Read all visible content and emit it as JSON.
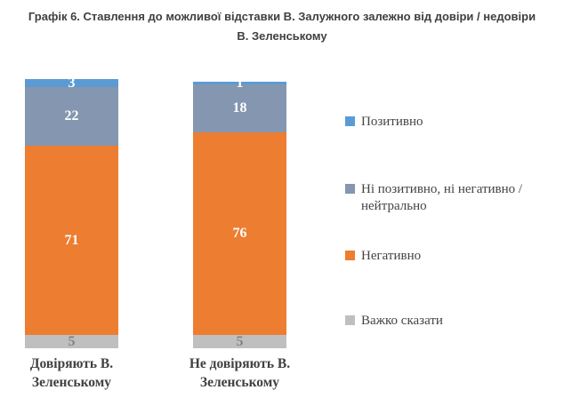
{
  "title": {
    "text": "Графік 6. Ставлення до можливої відставки В. Залужного залежно від довіри / недовіри\nВ. Зеленському"
  },
  "chart_data": {
    "type": "bar",
    "stacked": true,
    "orientation": "vertical",
    "title": "Графік 6. Ставлення до можливої відставки В. Залужного залежно від довіри / недовіри В. Зеленському",
    "categories": [
      "Довіряють В. Зеленському",
      "Не довіряють В. Зеленському"
    ],
    "categories_display": [
      "Довіряють В.\nЗеленському",
      "Не довіряють В.\nЗеленському"
    ],
    "series": [
      {
        "name": "Позитивно",
        "color": "#5B9BD5",
        "values": [
          3,
          1
        ]
      },
      {
        "name": "Ні позитивно, ні негативно / нейтрально",
        "color": "#8496B0",
        "values": [
          22,
          18
        ]
      },
      {
        "name": "Негативно",
        "color": "#ED7D31",
        "values": [
          71,
          76
        ]
      },
      {
        "name": "Важко сказати",
        "color": "#BFBFBF",
        "values": [
          5,
          5
        ]
      }
    ],
    "legend_display": [
      "Позитивно",
      "Ні позитивно, ні негативно /\nнейтрально",
      "Негативно",
      "Важко сказати"
    ],
    "segment_order": "top-to-bottom",
    "value_labels": true,
    "value_label_colors": [
      "#FFFFFF",
      "#FFFFFF",
      "#FFFFFF",
      "#838383"
    ],
    "value_unit": "percent",
    "axis": {
      "visible": false,
      "max": 100
    },
    "grid": false,
    "legend_position": "right"
  }
}
